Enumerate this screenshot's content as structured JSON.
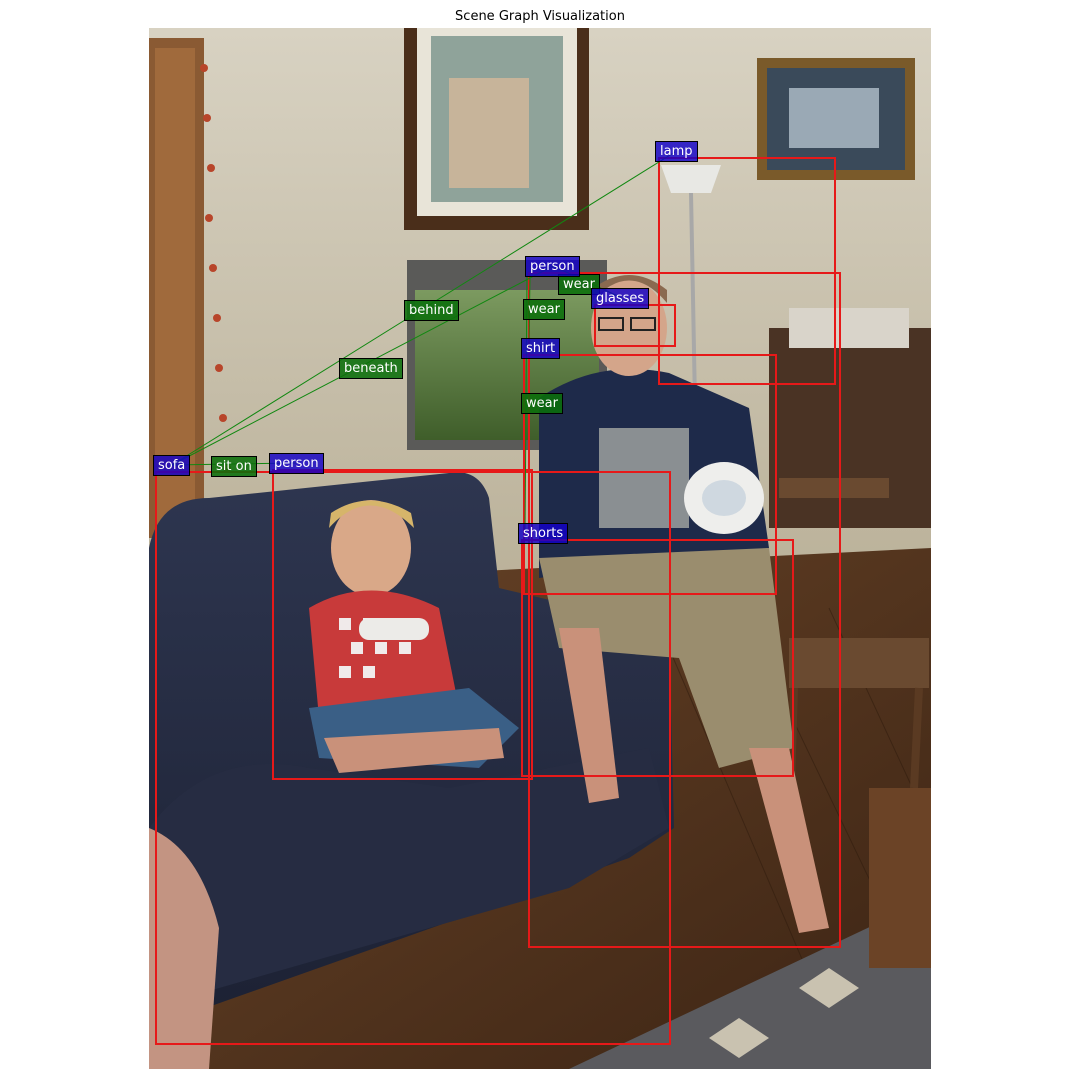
{
  "title": "Scene Graph Visualization",
  "objects": {
    "lamp": "lamp",
    "person_man": "person",
    "glasses": "glasses",
    "shirt": "shirt",
    "sofa": "sofa",
    "person_boy": "person",
    "shorts": "shorts"
  },
  "relations": {
    "wear_glasses": "wear",
    "wear_shirt": "wear",
    "wear_shorts": "wear",
    "behind": "behind",
    "beneath": "beneath",
    "sit_on": "sit on"
  },
  "triples": [
    [
      "person",
      "wear",
      "glasses"
    ],
    [
      "person",
      "wear",
      "shirt"
    ],
    [
      "person",
      "wear",
      "shorts"
    ],
    [
      "sofa",
      "behind",
      "lamp"
    ],
    [
      "sofa",
      "beneath",
      "person"
    ],
    [
      "sofa",
      "sit on",
      "person"
    ]
  ],
  "colors": {
    "box": "#e61919",
    "edge": "#118811",
    "object_label": "#1200c8",
    "relation_label": "#0a6e0a"
  }
}
